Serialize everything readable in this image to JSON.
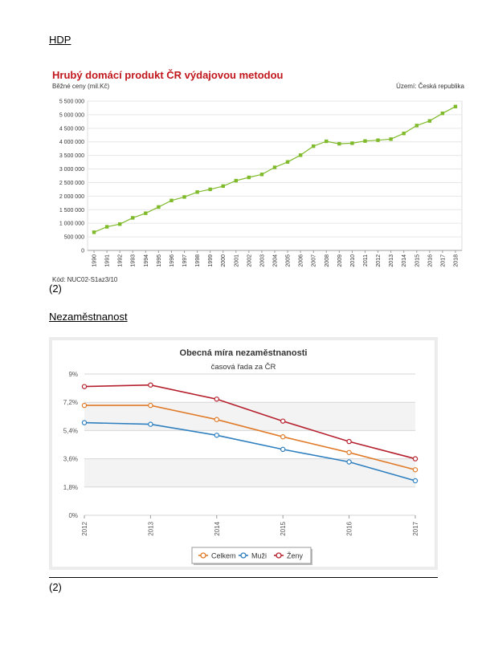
{
  "sections": {
    "gdp_heading": "HDP",
    "gdp_ref": "(2)",
    "unemp_heading": "Nezaměstnanost",
    "unemp_ref": "(2)"
  },
  "chart_data": [
    {
      "type": "line",
      "title": "Hrubý domácí produkt ČR výdajovou metodou",
      "subtitle": "Běžné ceny (mil.Kč)",
      "territory": "Území: Česká republika",
      "code": "Kód: NUC02-S1az3/10",
      "xlabel": "",
      "ylabel": "",
      "x": [
        "1990",
        "1991",
        "1992",
        "1993",
        "1994",
        "1995",
        "1996",
        "1997",
        "1998",
        "1999",
        "2000",
        "2001",
        "2002",
        "2003",
        "2004",
        "2005",
        "2006",
        "2007",
        "2008",
        "2009",
        "2010",
        "2011",
        "2012",
        "2013",
        "2014",
        "2015",
        "2016",
        "2017",
        "2018"
      ],
      "series": [
        {
          "values": [
            670000,
            870000,
            970000,
            1200000,
            1370000,
            1600000,
            1840000,
            1970000,
            2150000,
            2250000,
            2370000,
            2570000,
            2690000,
            2800000,
            3060000,
            3260000,
            3510000,
            3840000,
            4020000,
            3930000,
            3950000,
            4030000,
            4060000,
            4100000,
            4310000,
            4600000,
            4770000,
            5050000,
            5300000
          ],
          "color": "#7fba2a"
        }
      ],
      "ylim": [
        0,
        5500000
      ],
      "yticks": [
        0,
        500000,
        1000000,
        1500000,
        2000000,
        2500000,
        3000000,
        3500000,
        4000000,
        4500000,
        5000000,
        5500000
      ],
      "ytick_labels": [
        "0",
        "500 000",
        "1 000 000",
        "1 500 000",
        "2 000 000",
        "2 500 000",
        "3 000 000",
        "3 500 000",
        "4 000 000",
        "4 500 000",
        "5 000 000",
        "5 500 000"
      ],
      "grid": true,
      "legend": "none"
    },
    {
      "type": "line",
      "title": "Obecná míra nezaměstnanosti",
      "subtitle": "časová řada za ČR",
      "xlabel": "",
      "ylabel": "",
      "x": [
        "2012",
        "2013",
        "2014",
        "2015",
        "2016",
        "2017"
      ],
      "series": [
        {
          "name": "Celkem",
          "values": [
            7.0,
            7.0,
            6.1,
            5.0,
            4.0,
            2.9
          ],
          "color": "#e07b2a"
        },
        {
          "name": "Muži",
          "values": [
            5.9,
            5.8,
            5.1,
            4.2,
            3.4,
            2.2
          ],
          "color": "#2e7fbf"
        },
        {
          "name": "Ženy",
          "values": [
            8.2,
            8.3,
            7.4,
            6.0,
            4.7,
            3.6
          ],
          "color": "#b5202e"
        }
      ],
      "ylim": [
        0,
        9
      ],
      "yticks": [
        0,
        1.8,
        3.6,
        5.4,
        7.2,
        9
      ],
      "ytick_labels": [
        "0%",
        "1,8%",
        "3,6%",
        "5,4%",
        "7,2%",
        "9%"
      ],
      "grid": true,
      "legend": "bottom-center"
    }
  ]
}
